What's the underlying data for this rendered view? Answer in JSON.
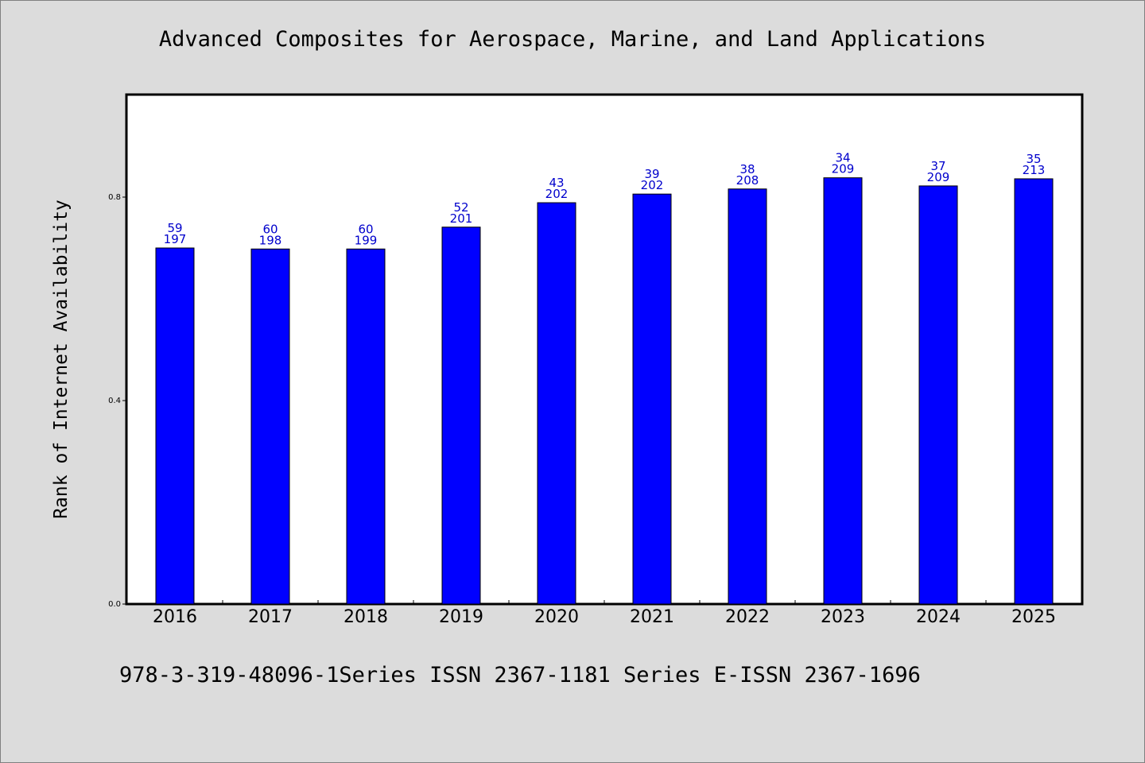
{
  "chart_data": {
    "type": "bar",
    "title": "Advanced Composites for Aerospace, Marine, and Land Applications",
    "ylabel": "Rank of Internet Availability",
    "xlabel": "",
    "categories": [
      "2016",
      "2017",
      "2018",
      "2019",
      "2020",
      "2021",
      "2022",
      "2023",
      "2024",
      "2025"
    ],
    "values": [
      0.7,
      0.698,
      0.698,
      0.741,
      0.789,
      0.806,
      0.816,
      0.838,
      0.822,
      0.836
    ],
    "labels_top": [
      "59",
      "60",
      "60",
      "52",
      "43",
      "39",
      "38",
      "34",
      "37",
      "35"
    ],
    "labels_bottom": [
      "197",
      "198",
      "199",
      "201",
      "202",
      "202",
      "208",
      "209",
      "209",
      "213"
    ],
    "ylim": [
      0,
      1
    ],
    "yticks": [
      "0.0",
      "0.4",
      "0.8"
    ],
    "bar_color": "#0000ff",
    "label_color": "#0000cc",
    "grid": false,
    "legend": "none"
  },
  "footer": {
    "text": "978-3-319-48096-1Series ISSN 2367-1181 Series E-ISSN 2367-1696"
  }
}
